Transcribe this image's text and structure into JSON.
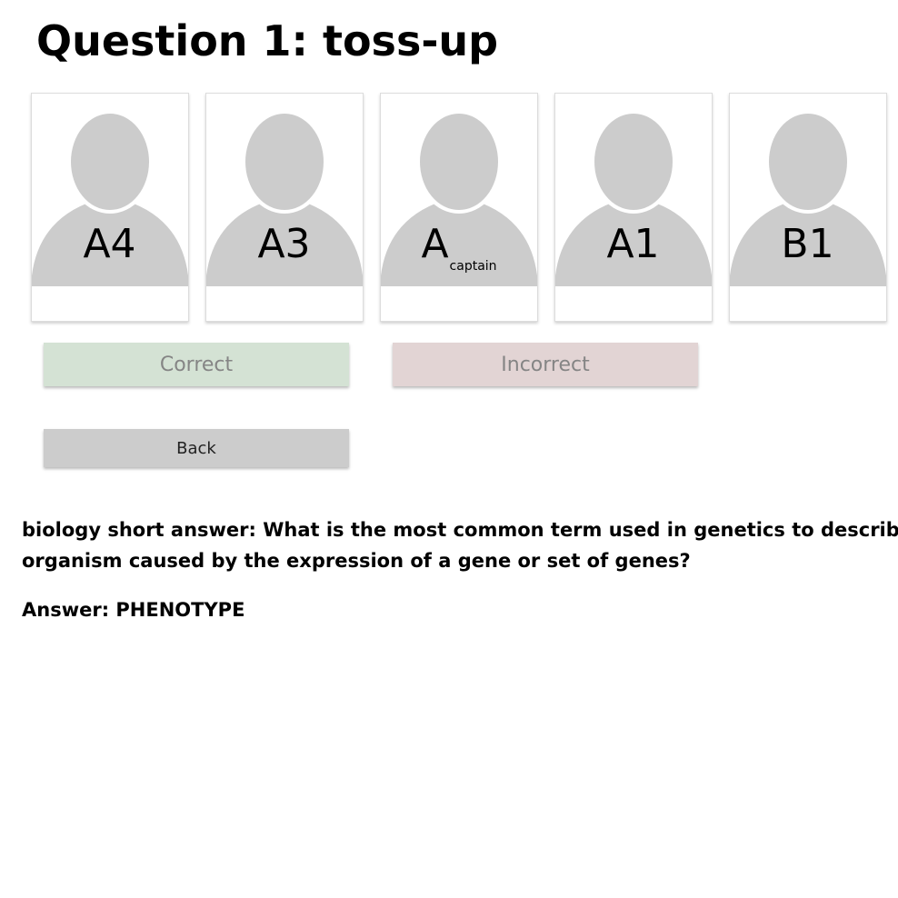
{
  "header": {
    "title": "Question 1: toss-up"
  },
  "players": [
    {
      "label": "A4",
      "sub": ""
    },
    {
      "label": "A3",
      "sub": ""
    },
    {
      "label": "A",
      "sub": "captain"
    },
    {
      "label": "A1",
      "sub": ""
    },
    {
      "label": "B1",
      "sub": ""
    }
  ],
  "actions": {
    "correct_label": "Correct",
    "incorrect_label": "Incorrect",
    "back_label": "Back"
  },
  "question": {
    "line1": "biology short answer: What is the most common term used in genetics to describe",
    "line2": "organism caused by the expression of a gene or set of genes?",
    "answer": "Answer: PHENOTYPE"
  },
  "icons": {
    "avatar": "person-silhouette-icon"
  },
  "colors": {
    "avatar_fill": "#cccccc",
    "correct_bg": "#d4e2d4",
    "incorrect_bg": "#e2d4d4",
    "back_bg": "#cccccc"
  }
}
